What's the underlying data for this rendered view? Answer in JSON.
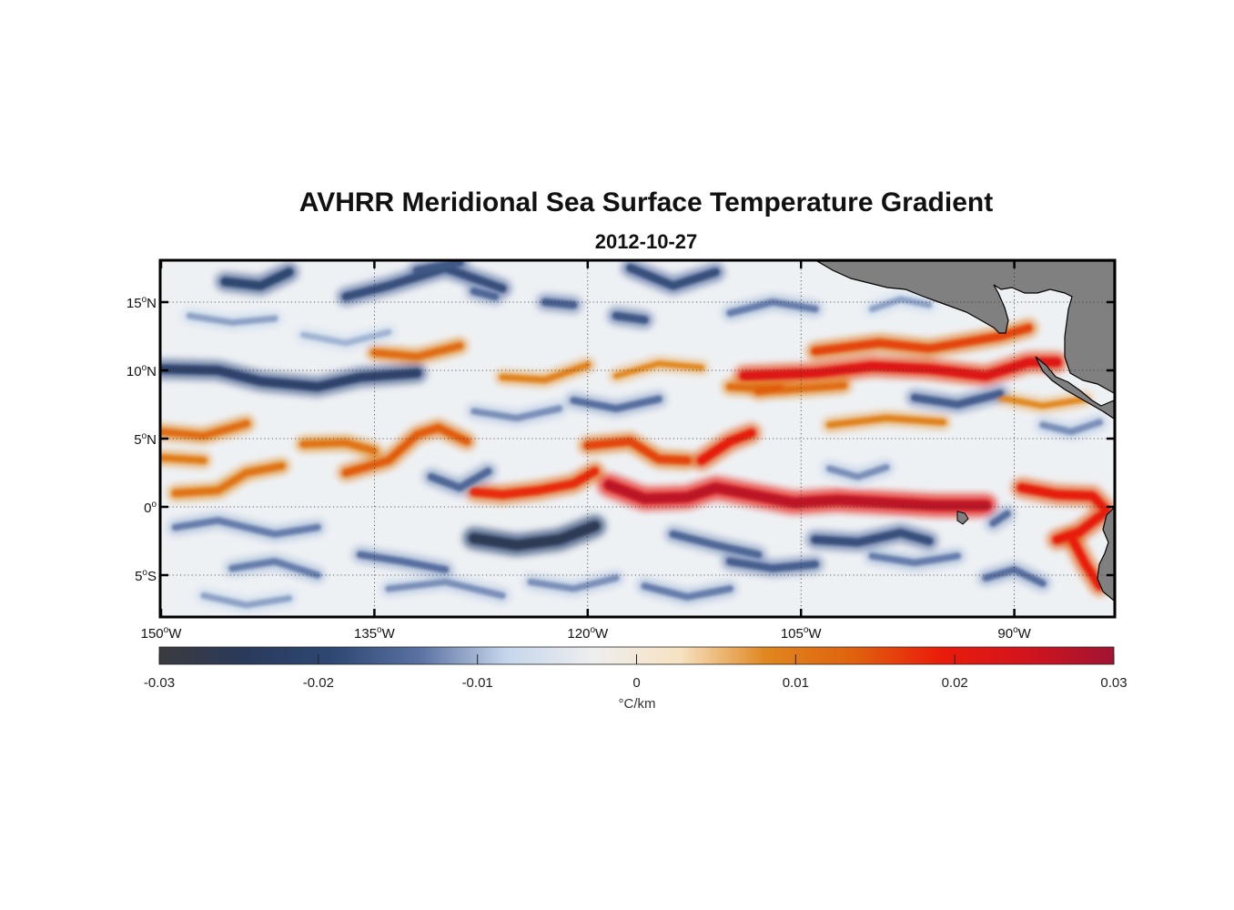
{
  "title": "AVHRR Meridional Sea Surface Temperature Gradient",
  "date": "2012-10-27",
  "map": {
    "lon_range": [
      -150,
      -83
    ],
    "lat_range": [
      -8,
      18
    ],
    "lat_ticks": [
      {
        "value": 15,
        "deg": "15",
        "hem": "N"
      },
      {
        "value": 10,
        "deg": "10",
        "hem": "N"
      },
      {
        "value": 5,
        "deg": "5",
        "hem": "N"
      },
      {
        "value": 0,
        "deg": "0",
        "hem": ""
      },
      {
        "value": -5,
        "deg": "5",
        "hem": "S"
      }
    ],
    "lon_ticks": [
      {
        "value": -150,
        "deg": "150",
        "hem": "W"
      },
      {
        "value": -135,
        "deg": "135",
        "hem": "W"
      },
      {
        "value": -120,
        "deg": "120",
        "hem": "W"
      },
      {
        "value": -105,
        "deg": "105",
        "hem": "W"
      },
      {
        "value": -90,
        "deg": "90",
        "hem": "W"
      }
    ],
    "grid": "dotted",
    "land_color": "#808080",
    "fronts": [
      {
        "strength": 0.027,
        "points": [
          [
            -118.5,
            1.6
          ],
          [
            -116,
            0.6
          ],
          [
            -113,
            0.7
          ],
          [
            -111,
            1.4
          ],
          [
            -108.5,
            0.9
          ],
          [
            -105.5,
            0.3
          ],
          [
            -102.5,
            0.5
          ],
          [
            -99,
            0.3
          ],
          [
            -95.5,
            0.1
          ],
          [
            -92,
            0.1
          ]
        ]
      },
      {
        "strength": 0.018,
        "points": [
          [
            -128,
            1.1
          ],
          [
            -126,
            0.9
          ],
          [
            -123.5,
            1.2
          ],
          [
            -121,
            1.7
          ],
          [
            -119.5,
            2.6
          ]
        ]
      },
      {
        "strength": 0.014,
        "points": [
          [
            -137,
            2.5
          ],
          [
            -134,
            3.4
          ],
          [
            -132,
            5.3
          ],
          [
            -130.5,
            5.8
          ],
          [
            -128.5,
            4.8
          ]
        ]
      },
      {
        "strength": 0.016,
        "points": [
          [
            -120,
            4.5
          ],
          [
            -117,
            4.8
          ],
          [
            -115,
            3.5
          ],
          [
            -113,
            3.4
          ]
        ]
      },
      {
        "strength": 0.02,
        "points": [
          [
            -112,
            3.4
          ],
          [
            -110,
            4.8
          ],
          [
            -108.5,
            5.4
          ]
        ]
      },
      {
        "strength": 0.022,
        "points": [
          [
            -109,
            9.6
          ],
          [
            -104,
            9.8
          ],
          [
            -100,
            10.3
          ],
          [
            -96,
            10.1
          ],
          [
            -92,
            9.6
          ],
          [
            -89,
            10.6
          ],
          [
            -87,
            10.6
          ]
        ]
      },
      {
        "strength": 0.016,
        "points": [
          [
            -104,
            11.4
          ],
          [
            -99.5,
            12.0
          ],
          [
            -96,
            11.6
          ],
          [
            -91,
            12.5
          ],
          [
            -89,
            13.1
          ]
        ]
      },
      {
        "strength": 0.02,
        "points": [
          [
            -89.5,
            1.4
          ],
          [
            -87,
            0.9
          ],
          [
            -84.5,
            0.8
          ],
          [
            -83.5,
            -0.3
          ],
          [
            -85.5,
            -1.9
          ],
          [
            -87,
            -2.4
          ]
        ]
      },
      {
        "strength": 0.019,
        "points": [
          [
            -86,
            -2.2
          ],
          [
            -85,
            -4.2
          ],
          [
            -84,
            -5.8
          ]
        ]
      },
      {
        "strength": 0.012,
        "points": [
          [
            -150,
            5.5
          ],
          [
            -147,
            5.2
          ],
          [
            -144,
            6.1
          ]
        ]
      },
      {
        "strength": 0.011,
        "points": [
          [
            -149,
            1.0
          ],
          [
            -146,
            1.2
          ],
          [
            -144,
            2.5
          ],
          [
            -141.5,
            3.0
          ]
        ]
      },
      {
        "strength": 0.01,
        "points": [
          [
            -150,
            3.6
          ],
          [
            -147,
            3.4
          ]
        ]
      },
      {
        "strength": 0.011,
        "points": [
          [
            -140,
            4.6
          ],
          [
            -137,
            4.7
          ],
          [
            -135,
            4.1
          ]
        ]
      },
      {
        "strength": 0.012,
        "points": [
          [
            -135,
            11.3
          ],
          [
            -132,
            11.0
          ],
          [
            -129,
            11.8
          ]
        ]
      },
      {
        "strength": 0.009,
        "points": [
          [
            -126,
            9.5
          ],
          [
            -123,
            9.3
          ],
          [
            -120,
            10.4
          ]
        ]
      },
      {
        "strength": 0.012,
        "points": [
          [
            -110,
            8.8
          ],
          [
            -106,
            8.6
          ],
          [
            -102,
            8.9
          ]
        ]
      },
      {
        "strength": 0.008,
        "points": [
          [
            -118,
            9.6
          ],
          [
            -115,
            10.5
          ],
          [
            -112,
            10.2
          ]
        ]
      },
      {
        "strength": 0.014,
        "points": [
          [
            -108,
            8.5
          ],
          [
            -106.5,
            8.7
          ]
        ]
      },
      {
        "strength": 0.009,
        "points": [
          [
            -103,
            6.0
          ],
          [
            -99,
            6.5
          ],
          [
            -95,
            6.2
          ]
        ]
      },
      {
        "strength": 0.008,
        "points": [
          [
            -91,
            8.0
          ],
          [
            -88,
            7.4
          ],
          [
            -85,
            7.9
          ]
        ]
      },
      {
        "strength": -0.026,
        "points": [
          [
            -128,
            -2.3
          ],
          [
            -125,
            -2.8
          ],
          [
            -122,
            -2.4
          ],
          [
            -119.5,
            -1.4
          ]
        ]
      },
      {
        "strength": -0.021,
        "points": [
          [
            -150,
            10.1
          ],
          [
            -146,
            10.0
          ],
          [
            -143,
            9.2
          ],
          [
            -139,
            8.8
          ],
          [
            -136,
            9.5
          ],
          [
            -132,
            9.8
          ]
        ]
      },
      {
        "strength": -0.02,
        "points": [
          [
            -145.5,
            16.5
          ],
          [
            -143,
            16.2
          ],
          [
            -141,
            17.2
          ]
        ]
      },
      {
        "strength": -0.018,
        "points": [
          [
            -137,
            15.4
          ],
          [
            -134,
            16.2
          ],
          [
            -130,
            17.5
          ],
          [
            -126,
            16.0
          ]
        ]
      },
      {
        "strength": -0.017,
        "points": [
          [
            -132,
            17.3
          ],
          [
            -129,
            17.9
          ]
        ]
      },
      {
        "strength": -0.018,
        "points": [
          [
            -117,
            17.5
          ],
          [
            -114,
            16.2
          ],
          [
            -111,
            17.2
          ]
        ]
      },
      {
        "strength": -0.016,
        "points": [
          [
            -123,
            15.0
          ],
          [
            -121,
            14.8
          ]
        ]
      },
      {
        "strength": -0.017,
        "points": [
          [
            -118,
            14.0
          ],
          [
            -116,
            13.7
          ]
        ]
      },
      {
        "strength": -0.015,
        "points": [
          [
            -128,
            15.8
          ],
          [
            -126.5,
            15.4
          ]
        ]
      },
      {
        "strength": -0.018,
        "points": [
          [
            -104,
            -2.4
          ],
          [
            -101,
            -2.6
          ],
          [
            -98,
            -1.9
          ],
          [
            -96,
            -2.5
          ]
        ]
      },
      {
        "strength": -0.015,
        "points": [
          [
            -114,
            -2.0
          ],
          [
            -111,
            -2.8
          ],
          [
            -108,
            -3.5
          ]
        ]
      },
      {
        "strength": -0.016,
        "points": [
          [
            -110,
            -4.0
          ],
          [
            -107,
            -4.5
          ],
          [
            -104,
            -4.2
          ]
        ]
      },
      {
        "strength": -0.014,
        "points": [
          [
            -92,
            -5.2
          ],
          [
            -90,
            -4.6
          ],
          [
            -88,
            -5.6
          ]
        ]
      },
      {
        "strength": -0.013,
        "points": [
          [
            -100,
            -3.6
          ],
          [
            -97,
            -4.1
          ],
          [
            -94,
            -3.6
          ]
        ]
      },
      {
        "strength": -0.013,
        "points": [
          [
            -145,
            -4.5
          ],
          [
            -142,
            -4.0
          ],
          [
            -139,
            -5.0
          ]
        ]
      },
      {
        "strength": -0.012,
        "points": [
          [
            -134,
            -6.0
          ],
          [
            -130,
            -5.5
          ],
          [
            -126,
            -6.5
          ]
        ]
      },
      {
        "strength": -0.013,
        "points": [
          [
            -149,
            -1.5
          ],
          [
            -146,
            -1.0
          ],
          [
            -142,
            -2.0
          ],
          [
            -139,
            -1.5
          ]
        ]
      },
      {
        "strength": -0.014,
        "points": [
          [
            -136,
            -3.5
          ],
          [
            -133,
            -4.0
          ],
          [
            -130,
            -4.6
          ]
        ]
      },
      {
        "strength": -0.016,
        "points": [
          [
            -97,
            8.0
          ],
          [
            -94,
            7.5
          ],
          [
            -91,
            8.3
          ]
        ]
      },
      {
        "strength": -0.012,
        "points": [
          [
            -88,
            6.0
          ],
          [
            -86,
            5.5
          ],
          [
            -84,
            6.2
          ]
        ]
      },
      {
        "strength": -0.013,
        "points": [
          [
            -110,
            14.2
          ],
          [
            -107,
            15.0
          ],
          [
            -104,
            14.5
          ]
        ]
      },
      {
        "strength": -0.011,
        "points": [
          [
            -100,
            14.5
          ],
          [
            -98,
            15.2
          ],
          [
            -96,
            14.8
          ]
        ]
      },
      {
        "strength": -0.014,
        "points": [
          [
            -121,
            7.8
          ],
          [
            -118,
            7.2
          ],
          [
            -115,
            7.9
          ]
        ]
      },
      {
        "strength": -0.012,
        "points": [
          [
            -128,
            7.0
          ],
          [
            -125,
            6.5
          ],
          [
            -122,
            7.2
          ]
        ]
      },
      {
        "strength": -0.015,
        "points": [
          [
            -131,
            2.2
          ],
          [
            -129,
            1.4
          ],
          [
            -127,
            2.6
          ]
        ]
      },
      {
        "strength": -0.013,
        "points": [
          [
            -116,
            -5.8
          ],
          [
            -113,
            -6.6
          ],
          [
            -110,
            -6.0
          ]
        ]
      },
      {
        "strength": -0.012,
        "points": [
          [
            -124,
            -5.5
          ],
          [
            -121,
            -6.0
          ],
          [
            -118,
            -5.2
          ]
        ]
      },
      {
        "strength": -0.014,
        "points": [
          [
            -91.5,
            -1.2
          ],
          [
            -90.5,
            -0.5
          ]
        ]
      },
      {
        "strength": -0.011,
        "points": [
          [
            -148,
            14.0
          ],
          [
            -145,
            13.5
          ],
          [
            -142,
            13.8
          ]
        ]
      },
      {
        "strength": -0.01,
        "points": [
          [
            -140,
            12.6
          ],
          [
            -137,
            12.0
          ],
          [
            -134,
            12.8
          ]
        ]
      },
      {
        "strength": -0.011,
        "points": [
          [
            -147,
            -6.5
          ],
          [
            -144,
            -7.2
          ],
          [
            -141,
            -6.7
          ]
        ]
      },
      {
        "strength": -0.012,
        "points": [
          [
            -103,
            2.8
          ],
          [
            -101,
            2.2
          ],
          [
            -99,
            2.9
          ]
        ]
      }
    ]
  },
  "colorbar": {
    "range": [
      -0.03,
      0.03
    ],
    "tick_values": [
      -0.03,
      -0.02,
      -0.01,
      0,
      0.01,
      0.02,
      0.03
    ],
    "tick_labels": [
      "-0.03",
      "-0.02",
      "-0.01",
      "0",
      "0.01",
      "0.02",
      "0.03"
    ],
    "unit": "°C/km",
    "colors": [
      "#3a3b3d",
      "#2a3a5c",
      "#2e4873",
      "#5a71a2",
      "#c5d6ec",
      "#eeeeee",
      "#f7e2c2",
      "#e0861e",
      "#e0620e",
      "#ea1c0a",
      "#d2141e",
      "#a01432"
    ]
  }
}
